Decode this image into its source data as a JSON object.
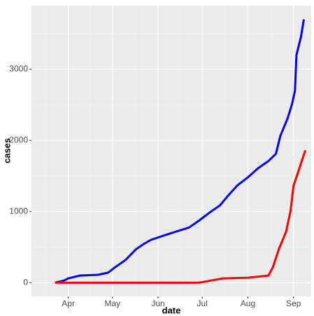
{
  "chart_data": {
    "type": "line",
    "x_label": "date",
    "y_label": "cases",
    "xlim": [
      6,
      196
    ],
    "ylim": [
      -194,
      3894
    ],
    "xticks": [
      {
        "value": 31,
        "label": "Apr"
      },
      {
        "value": 61,
        "label": "May"
      },
      {
        "value": 92,
        "label": "Jun"
      },
      {
        "value": 122,
        "label": "Jul"
      },
      {
        "value": 153,
        "label": "Aug"
      },
      {
        "value": 184,
        "label": "Sep"
      }
    ],
    "yticks": [
      0,
      1000,
      2000,
      3000
    ],
    "grid": true,
    "series": [
      {
        "color": "#0000ff",
        "x": [
          22,
          28,
          31,
          39,
          51,
          58,
          63,
          70,
          77,
          82,
          87,
          94,
          103,
          113,
          120,
          127,
          134,
          139,
          146,
          153,
          160,
          167,
          172,
          175,
          180,
          183,
          185,
          186,
          189,
          191
        ],
        "values": [
          0,
          30,
          60,
          100,
          110,
          140,
          220,
          320,
          470,
          540,
          600,
          650,
          710,
          775,
          875,
          985,
          1085,
          1210,
          1370,
          1480,
          1610,
          1710,
          1810,
          2060,
          2310,
          2510,
          2700,
          3200,
          3450,
          3700
        ]
      },
      {
        "color": "#ff0000",
        "x": [
          22,
          60,
          100,
          120,
          136,
          153,
          167,
          170,
          174,
          179,
          182,
          184,
          188,
          192
        ],
        "values": [
          0,
          0,
          0,
          0,
          60,
          70,
          100,
          220,
          470,
          720,
          1010,
          1360,
          1610,
          1860
        ]
      }
    ]
  }
}
